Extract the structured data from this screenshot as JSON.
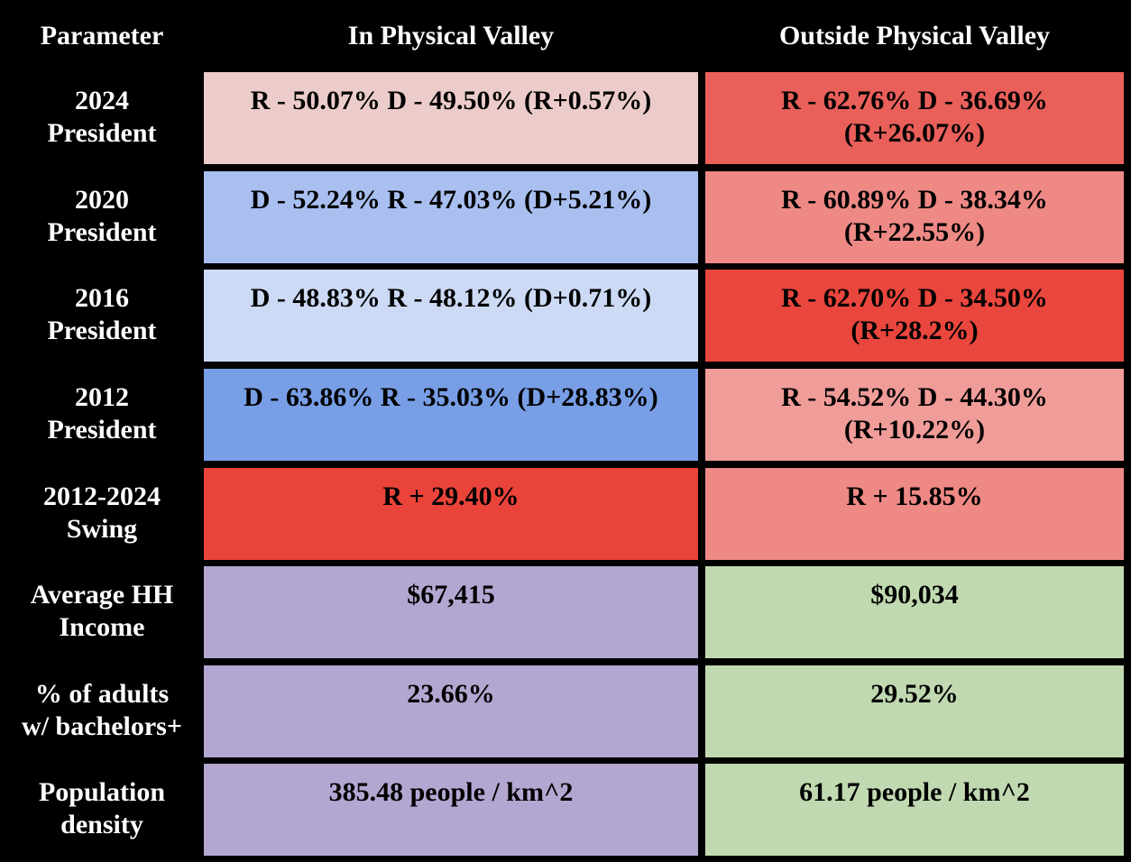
{
  "headers": {
    "parameter": "Parameter",
    "in_valley": "In Physical Valley",
    "outside_valley": "Outside Physical Valley"
  },
  "rows": [
    {
      "label_line1": "2024",
      "label_line2": "President",
      "in_line1": "R - 50.07% D - 49.50% (R+0.57%)",
      "in_line2": "",
      "out_line1": "R - 62.76% D - 36.69%",
      "out_line2": "(R+26.07%)",
      "in_color": "#ecccca",
      "out_color": "#e95f5a"
    },
    {
      "label_line1": "2020",
      "label_line2": "President",
      "in_line1": "D - 52.24% R - 47.03% (D+5.21%)",
      "in_line2": "",
      "out_line1": "R - 60.89% D - 38.34%",
      "out_line2": "(R+22.55%)",
      "in_color": "#a9bff0",
      "out_color": "#ee8985"
    },
    {
      "label_line1": "2016",
      "label_line2": "President",
      "in_line1": "D - 48.83% R - 48.12% (D+0.71%)",
      "in_line2": "",
      "out_line1": "R - 62.70% D - 34.50%",
      "out_line2": "(R+28.2%)",
      "in_color": "#ccdaf5",
      "out_color": "#e9463d"
    },
    {
      "label_line1": "2012",
      "label_line2": "President",
      "in_line1": "D - 63.86% R - 35.03% (D+28.83%)",
      "in_line2": "",
      "out_line1": "R - 54.52% D - 44.30%",
      "out_line2": "(R+10.22%)",
      "in_color": "#789ee6",
      "out_color": "#f09c99"
    },
    {
      "label_line1": "2012-2024",
      "label_line2": "Swing",
      "in_line1": "R + 29.40%",
      "in_line2": "",
      "out_line1": "R + 15.85%",
      "out_line2": "",
      "in_color": "#e9433a",
      "out_color": "#ee8985"
    },
    {
      "label_line1": "Average HH",
      "label_line2": "Income",
      "in_line1": "$67,415",
      "in_line2": "",
      "out_line1": "$90,034",
      "out_line2": "",
      "in_color": "#b3a7d2",
      "out_color": "#c1d9b1"
    },
    {
      "label_line1": "% of adults",
      "label_line2": "w/ bachelors+",
      "in_line1": "23.66%",
      "in_line2": "",
      "out_line1": "29.52%",
      "out_line2": "",
      "in_color": "#b3a7d2",
      "out_color": "#c1d9b1"
    },
    {
      "label_line1": "Population",
      "label_line2": "density",
      "in_line1": "385.48 people / km^2",
      "in_line2": "",
      "out_line1": "61.17 people / km^2",
      "out_line2": "",
      "in_color": "#b3a7d2",
      "out_color": "#c1d9b1"
    }
  ]
}
